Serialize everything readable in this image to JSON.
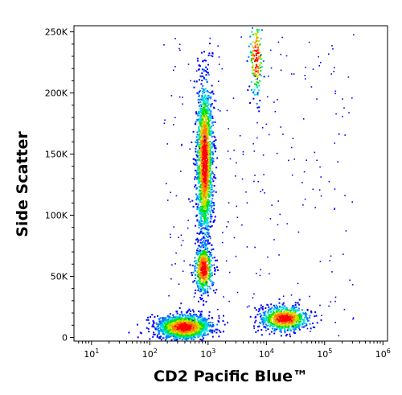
{
  "chart_data": {
    "type": "scatter",
    "subtype": "flow-cytometry-density-dot-plot",
    "xlabel": "CD2 Pacific Blue™",
    "ylabel": "Side Scatter",
    "x_scale": "log",
    "xlim": [
      5,
      1200000
    ],
    "ylim": [
      -3000,
      255000
    ],
    "x_ticks": [
      {
        "value": 10,
        "base": "10",
        "exp": "1"
      },
      {
        "value": 100,
        "base": "10",
        "exp": "2"
      },
      {
        "value": 1000,
        "base": "10",
        "exp": "3"
      },
      {
        "value": 10000,
        "base": "10",
        "exp": "4"
      },
      {
        "value": 100000,
        "base": "10",
        "exp": "5"
      },
      {
        "value": 1000000,
        "base": "10",
        "exp": "6"
      }
    ],
    "y_ticks": [
      {
        "value": 0,
        "label": "0"
      },
      {
        "value": 50000,
        "label": "50K"
      },
      {
        "value": 100000,
        "label": "100K"
      },
      {
        "value": 150000,
        "label": "150K"
      },
      {
        "value": 200000,
        "label": "200K"
      },
      {
        "value": 250000,
        "label": "250K"
      }
    ],
    "populations": [
      {
        "x_center": 380,
        "y_center": 9000,
        "x_spread_log": 0.23,
        "y_spread": 5000,
        "count": 1600
      },
      {
        "x_center": 850,
        "y_center": 145000,
        "x_spread_log": 0.07,
        "y_spread": 32000,
        "count": 1700
      },
      {
        "x_center": 820,
        "y_center": 57000,
        "x_spread_log": 0.08,
        "y_spread": 10000,
        "count": 500
      },
      {
        "x_center": 6500,
        "y_center": 230000,
        "x_spread_log": 0.06,
        "y_spread": 17000,
        "count": 160
      },
      {
        "x_center": 20000,
        "y_center": 16000,
        "x_spread_log": 0.2,
        "y_spread": 5000,
        "count": 800
      }
    ],
    "colors": [
      "#0000ff",
      "#0080ff",
      "#00e0e0",
      "#00e000",
      "#d0e000",
      "#ff8000",
      "#ff0000"
    ],
    "grid": false,
    "legend": "none"
  }
}
